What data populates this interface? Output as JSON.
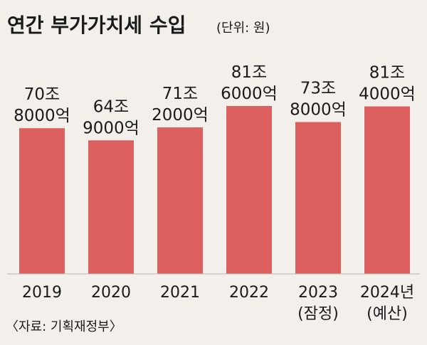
{
  "chart_data": {
    "type": "bar",
    "title": "연간 부가가치세 수입",
    "unit": "(단위: 원)",
    "source": "〈자료: 기획재정부〉",
    "categories": [
      [
        "2019"
      ],
      [
        "2020"
      ],
      [
        "2021"
      ],
      [
        "2022"
      ],
      [
        "2023",
        "(잠정)"
      ],
      [
        "2024년",
        "(예산)"
      ]
    ],
    "values": [
      708000,
      649000,
      712000,
      816000,
      738000,
      814000
    ],
    "value_labels": [
      [
        "70조",
        "8000억"
      ],
      [
        "64조",
        "9000억"
      ],
      [
        "71조",
        "2000억"
      ],
      [
        "81조",
        "6000억"
      ],
      [
        "73조",
        "8000억"
      ],
      [
        "81조",
        "4000억"
      ]
    ],
    "ylim": [
      0,
      816000
    ],
    "grid": false,
    "colors": {
      "bar": "#dc6060",
      "background": "#f3f0ec",
      "baseline": "#b9b4ae"
    }
  }
}
